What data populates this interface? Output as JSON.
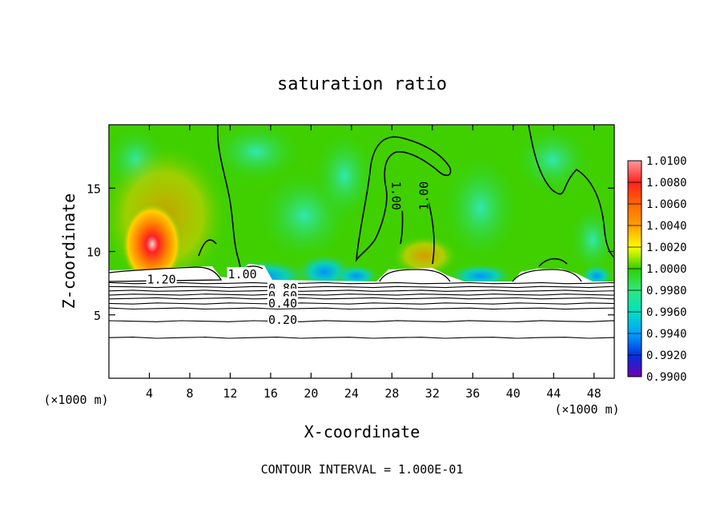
{
  "chart_data": {
    "type": "heatmap",
    "title": "saturation ratio",
    "xlabel": "X-coordinate",
    "ylabel": "Z-coordinate",
    "x_unit_label": "(×1000 m)",
    "y_unit_label": "(×1000 m)",
    "footer": "CONTOUR INTERVAL = 1.000E-01",
    "xlim": [
      0,
      50
    ],
    "ylim": [
      0,
      20
    ],
    "x_ticks": [
      4,
      8,
      12,
      16,
      20,
      24,
      28,
      32,
      36,
      40,
      44,
      48
    ],
    "y_ticks": [
      5,
      10,
      15
    ],
    "colorbar": {
      "levels": [
        "1.0100",
        "1.0080",
        "1.0060",
        "1.0040",
        "1.0020",
        "1.0000",
        "0.9980",
        "0.9960",
        "0.9940",
        "0.9920",
        "0.9900"
      ],
      "colors": [
        "#ff9a9a",
        "#ff2020",
        "#ff6a00",
        "#ffa000",
        "#ffff00",
        "#30d000",
        "#30e880",
        "#00e0c0",
        "#00a0ff",
        "#0030e0",
        "#7000b0"
      ]
    },
    "contour_labels": [
      {
        "text": "1.20",
        "x": 5.2,
        "y": 7.8
      },
      {
        "text": "1.00",
        "x": 13.2,
        "y": 8.2
      },
      {
        "text": "0.80",
        "x": 17.2,
        "y": 7.1
      },
      {
        "text": "0.60",
        "x": 17.2,
        "y": 6.5
      },
      {
        "text": "0.40",
        "x": 17.2,
        "y": 5.9
      },
      {
        "text": "0.20",
        "x": 17.2,
        "y": 4.6
      },
      {
        "text": "1.00",
        "x": 28.4,
        "y": 14.4,
        "rotate": 90
      },
      {
        "text": "1.00",
        "x": 31.2,
        "y": 14.4,
        "rotate": -90
      }
    ],
    "contour_levels": [
      0.2,
      0.4,
      0.6,
      0.8,
      1.0,
      1.2
    ],
    "layered_contours_z": [
      3.2,
      4.5,
      5.5,
      5.9,
      6.3,
      6.6,
      6.9,
      7.2,
      7.5
    ],
    "background_value": "1.0000",
    "dry_layer_top_z": 7.6
  }
}
